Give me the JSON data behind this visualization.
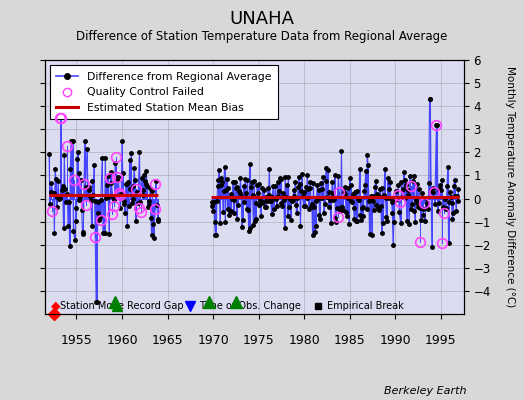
{
  "title": "UNAHA",
  "subtitle": "Difference of Station Temperature Data from Regional Average",
  "ylabel": "Monthly Temperature Anomaly Difference (°C)",
  "xlim": [
    1951.5,
    1997.5
  ],
  "ylim": [
    -5,
    6
  ],
  "yticks": [
    -4,
    -3,
    -2,
    -1,
    0,
    1,
    2,
    3,
    4,
    5,
    6
  ],
  "xticks": [
    1955,
    1960,
    1965,
    1970,
    1975,
    1980,
    1985,
    1990,
    1995
  ],
  "background_color": "#d8d8d8",
  "plot_bg_color": "#dcdcf0",
  "line_color": "#4444ff",
  "bias_color": "#cc0000",
  "qc_color": "#ff44ff",
  "footer": "Berkeley Earth",
  "bias_early_y": 0.15,
  "bias_late_y": 0.05,
  "record_gaps": [
    1959.25,
    1969.5,
    1972.5
  ],
  "station_moves": [
    1952.5
  ],
  "time_obs_changes": [],
  "empirical_breaks": [],
  "gap_start": 1964.0,
  "gap_end": 1969.75,
  "seed": 7
}
